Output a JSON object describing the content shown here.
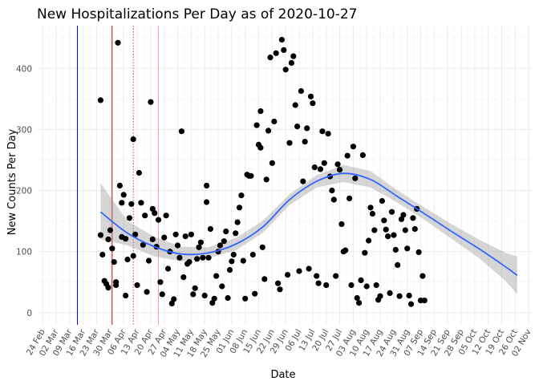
{
  "chart_data": {
    "type": "scatter",
    "title": "New Hospitalizations Per Day as of 2020-10-27",
    "xlabel": "Date",
    "ylabel": "New Counts Per Day",
    "xlim": [
      "2020-02-21",
      "2020-11-04"
    ],
    "ylim": [
      -20,
      470
    ],
    "y_ticks": [
      0,
      100,
      200,
      300,
      400
    ],
    "x_ticks": [
      {
        "date": "2020-02-24",
        "label": "24 Feb"
      },
      {
        "date": "2020-03-02",
        "label": "02 Mar"
      },
      {
        "date": "2020-03-09",
        "label": "09 Mar"
      },
      {
        "date": "2020-03-16",
        "label": "16 Mar"
      },
      {
        "date": "2020-03-23",
        "label": "23 Mar"
      },
      {
        "date": "2020-03-30",
        "label": "30 Mar"
      },
      {
        "date": "2020-04-06",
        "label": "06 Apr"
      },
      {
        "date": "2020-04-13",
        "label": "13 Apr"
      },
      {
        "date": "2020-04-20",
        "label": "20 Apr"
      },
      {
        "date": "2020-04-27",
        "label": "27 Apr"
      },
      {
        "date": "2020-05-04",
        "label": "04 May"
      },
      {
        "date": "2020-05-11",
        "label": "11 May"
      },
      {
        "date": "2020-05-18",
        "label": "18 May"
      },
      {
        "date": "2020-05-25",
        "label": "25 May"
      },
      {
        "date": "2020-06-01",
        "label": "01 Jun"
      },
      {
        "date": "2020-06-08",
        "label": "08 Jun"
      },
      {
        "date": "2020-06-15",
        "label": "15 Jun"
      },
      {
        "date": "2020-06-22",
        "label": "22 Jun"
      },
      {
        "date": "2020-06-29",
        "label": "29 Jun"
      },
      {
        "date": "2020-07-06",
        "label": "06 Jul"
      },
      {
        "date": "2020-07-13",
        "label": "13 Jul"
      },
      {
        "date": "2020-07-20",
        "label": "20 Jul"
      },
      {
        "date": "2020-07-27",
        "label": "27 Jul"
      },
      {
        "date": "2020-08-03",
        "label": "03 Aug"
      },
      {
        "date": "2020-08-10",
        "label": "10 Aug"
      },
      {
        "date": "2020-08-17",
        "label": "17 Aug"
      },
      {
        "date": "2020-08-24",
        "label": "24 Aug"
      },
      {
        "date": "2020-08-31",
        "label": "31 Aug"
      },
      {
        "date": "2020-09-07",
        "label": "07 Sep"
      },
      {
        "date": "2020-09-14",
        "label": "14 Sep"
      },
      {
        "date": "2020-09-21",
        "label": "21 Sep"
      },
      {
        "date": "2020-09-28",
        "label": "28 Sep"
      },
      {
        "date": "2020-10-05",
        "label": "05 Oct"
      },
      {
        "date": "2020-10-12",
        "label": "12 Oct"
      },
      {
        "date": "2020-10-19",
        "label": "19 Oct"
      },
      {
        "date": "2020-10-26",
        "label": "26 Oct"
      },
      {
        "date": "2020-11-02",
        "label": "02 Nov"
      }
    ],
    "grid": true,
    "point_color": "#000000",
    "reference_lines": [
      {
        "date": "2020-03-13",
        "color": "#0000ff",
        "style": "solid"
      },
      {
        "date": "2020-03-31",
        "color": "#cc0000",
        "style": "solid"
      },
      {
        "date": "2020-04-11",
        "color": "#cc3333",
        "style": "dotted"
      },
      {
        "date": "2020-04-24",
        "color": "#f4a0a0",
        "style": "solid"
      }
    ],
    "smooth": {
      "color": "#3366ff",
      "band_color": "#999999",
      "x": [
        "2020-03-25",
        "2020-04-08",
        "2020-04-22",
        "2020-05-06",
        "2020-05-20",
        "2020-06-03",
        "2020-06-17",
        "2020-07-01",
        "2020-07-15",
        "2020-07-29",
        "2020-08-12",
        "2020-08-26",
        "2020-09-09",
        "2020-09-23",
        "2020-10-07",
        "2020-10-21",
        "2020-10-27"
      ],
      "y": [
        165,
        130,
        108,
        96,
        98,
        112,
        140,
        185,
        215,
        228,
        218,
        190,
        162,
        133,
        105,
        75,
        61
      ],
      "lower": [
        120,
        110,
        92,
        84,
        89,
        102,
        130,
        176,
        205,
        214,
        205,
        180,
        152,
        121,
        90,
        52,
        30
      ],
      "upper": [
        212,
        150,
        124,
        108,
        107,
        122,
        150,
        194,
        225,
        242,
        232,
        200,
        172,
        145,
        120,
        98,
        92
      ]
    },
    "points": [
      {
        "x": "2020-03-25",
        "y": 348
      },
      {
        "x": "2020-03-25",
        "y": 127
      },
      {
        "x": "2020-03-26",
        "y": 95
      },
      {
        "x": "2020-03-27",
        "y": 52
      },
      {
        "x": "2020-03-28",
        "y": 47
      },
      {
        "x": "2020-03-29",
        "y": 41
      },
      {
        "x": "2020-03-29",
        "y": 120
      },
      {
        "x": "2020-03-30",
        "y": 135
      },
      {
        "x": "2020-03-31",
        "y": 105
      },
      {
        "x": "2020-04-01",
        "y": 83
      },
      {
        "x": "2020-04-02",
        "y": 45
      },
      {
        "x": "2020-04-02",
        "y": 50
      },
      {
        "x": "2020-04-03",
        "y": 442
      },
      {
        "x": "2020-04-04",
        "y": 208
      },
      {
        "x": "2020-04-05",
        "y": 180
      },
      {
        "x": "2020-04-05",
        "y": 124
      },
      {
        "x": "2020-04-06",
        "y": 193
      },
      {
        "x": "2020-04-07",
        "y": 28
      },
      {
        "x": "2020-04-07",
        "y": 121
      },
      {
        "x": "2020-04-08",
        "y": 87
      },
      {
        "x": "2020-04-09",
        "y": 155
      },
      {
        "x": "2020-04-10",
        "y": 178
      },
      {
        "x": "2020-04-11",
        "y": 284
      },
      {
        "x": "2020-04-11",
        "y": 93
      },
      {
        "x": "2020-04-12",
        "y": 128
      },
      {
        "x": "2020-04-13",
        "y": 45
      },
      {
        "x": "2020-04-14",
        "y": 229
      },
      {
        "x": "2020-04-15",
        "y": 180
      },
      {
        "x": "2020-04-16",
        "y": 111
      },
      {
        "x": "2020-04-17",
        "y": 159
      },
      {
        "x": "2020-04-18",
        "y": 34
      },
      {
        "x": "2020-04-19",
        "y": 85
      },
      {
        "x": "2020-04-20",
        "y": 345
      },
      {
        "x": "2020-04-21",
        "y": 170
      },
      {
        "x": "2020-04-21",
        "y": 120
      },
      {
        "x": "2020-04-22",
        "y": 163
      },
      {
        "x": "2020-04-23",
        "y": 108
      },
      {
        "x": "2020-04-24",
        "y": 152
      },
      {
        "x": "2020-04-25",
        "y": 50
      },
      {
        "x": "2020-04-26",
        "y": 30
      },
      {
        "x": "2020-04-27",
        "y": 123
      },
      {
        "x": "2020-04-28",
        "y": 159
      },
      {
        "x": "2020-04-29",
        "y": 72
      },
      {
        "x": "2020-04-30",
        "y": 100
      },
      {
        "x": "2020-05-01",
        "y": 15
      },
      {
        "x": "2020-05-02",
        "y": 22
      },
      {
        "x": "2020-05-03",
        "y": 128
      },
      {
        "x": "2020-05-04",
        "y": 110
      },
      {
        "x": "2020-05-05",
        "y": 90
      },
      {
        "x": "2020-05-06",
        "y": 297
      },
      {
        "x": "2020-05-07",
        "y": 58
      },
      {
        "x": "2020-05-08",
        "y": 125
      },
      {
        "x": "2020-05-09",
        "y": 80
      },
      {
        "x": "2020-05-10",
        "y": 83
      },
      {
        "x": "2020-05-11",
        "y": 128
      },
      {
        "x": "2020-05-12",
        "y": 30
      },
      {
        "x": "2020-05-13",
        "y": 40
      },
      {
        "x": "2020-05-14",
        "y": 88
      },
      {
        "x": "2020-05-15",
        "y": 107
      },
      {
        "x": "2020-05-16",
        "y": 115
      },
      {
        "x": "2020-05-17",
        "y": 90
      },
      {
        "x": "2020-05-18",
        "y": 28
      },
      {
        "x": "2020-05-19",
        "y": 208
      },
      {
        "x": "2020-05-19",
        "y": 181
      },
      {
        "x": "2020-05-20",
        "y": 90
      },
      {
        "x": "2020-05-21",
        "y": 137
      },
      {
        "x": "2020-05-22",
        "y": 16
      },
      {
        "x": "2020-05-23",
        "y": 23
      },
      {
        "x": "2020-05-24",
        "y": 60
      },
      {
        "x": "2020-05-25",
        "y": 100
      },
      {
        "x": "2020-05-26",
        "y": 110
      },
      {
        "x": "2020-05-27",
        "y": 43
      },
      {
        "x": "2020-05-28",
        "y": 117
      },
      {
        "x": "2020-05-29",
        "y": 133
      },
      {
        "x": "2020-05-30",
        "y": 24
      },
      {
        "x": "2020-05-31",
        "y": 70
      },
      {
        "x": "2020-06-01",
        "y": 84
      },
      {
        "x": "2020-06-02",
        "y": 95
      },
      {
        "x": "2020-06-03",
        "y": 130
      },
      {
        "x": "2020-06-04",
        "y": 148
      },
      {
        "x": "2020-06-05",
        "y": 172
      },
      {
        "x": "2020-06-06",
        "y": 192
      },
      {
        "x": "2020-06-07",
        "y": 85
      },
      {
        "x": "2020-06-08",
        "y": 23
      },
      {
        "x": "2020-06-09",
        "y": 226
      },
      {
        "x": "2020-06-10",
        "y": 224
      },
      {
        "x": "2020-06-11",
        "y": 224
      },
      {
        "x": "2020-06-12",
        "y": 95
      },
      {
        "x": "2020-06-13",
        "y": 31
      },
      {
        "x": "2020-06-14",
        "y": 307
      },
      {
        "x": "2020-06-15",
        "y": 275
      },
      {
        "x": "2020-06-16",
        "y": 330
      },
      {
        "x": "2020-06-16",
        "y": 270
      },
      {
        "x": "2020-06-17",
        "y": 107
      },
      {
        "x": "2020-06-18",
        "y": 55
      },
      {
        "x": "2020-06-19",
        "y": 218
      },
      {
        "x": "2020-06-20",
        "y": 298
      },
      {
        "x": "2020-06-21",
        "y": 418
      },
      {
        "x": "2020-06-22",
        "y": 245
      },
      {
        "x": "2020-06-23",
        "y": 313
      },
      {
        "x": "2020-06-24",
        "y": 425
      },
      {
        "x": "2020-06-25",
        "y": 48
      },
      {
        "x": "2020-06-26",
        "y": 38
      },
      {
        "x": "2020-06-27",
        "y": 447
      },
      {
        "x": "2020-06-28",
        "y": 430
      },
      {
        "x": "2020-06-29",
        "y": 398
      },
      {
        "x": "2020-06-30",
        "y": 62
      },
      {
        "x": "2020-07-01",
        "y": 278
      },
      {
        "x": "2020-07-02",
        "y": 409
      },
      {
        "x": "2020-07-03",
        "y": 420
      },
      {
        "x": "2020-07-04",
        "y": 340
      },
      {
        "x": "2020-07-05",
        "y": 305
      },
      {
        "x": "2020-07-06",
        "y": 68
      },
      {
        "x": "2020-07-07",
        "y": 363
      },
      {
        "x": "2020-07-08",
        "y": 215
      },
      {
        "x": "2020-07-09",
        "y": 280
      },
      {
        "x": "2020-07-10",
        "y": 302
      },
      {
        "x": "2020-07-11",
        "y": 72
      },
      {
        "x": "2020-07-12",
        "y": 354
      },
      {
        "x": "2020-07-13",
        "y": 343
      },
      {
        "x": "2020-07-14",
        "y": 238
      },
      {
        "x": "2020-07-15",
        "y": 60
      },
      {
        "x": "2020-07-16",
        "y": 48
      },
      {
        "x": "2020-07-17",
        "y": 235
      },
      {
        "x": "2020-07-18",
        "y": 297
      },
      {
        "x": "2020-07-19",
        "y": 245
      },
      {
        "x": "2020-07-20",
        "y": 45
      },
      {
        "x": "2020-07-21",
        "y": 293
      },
      {
        "x": "2020-07-22",
        "y": 223
      },
      {
        "x": "2020-07-23",
        "y": 200
      },
      {
        "x": "2020-07-24",
        "y": 185
      },
      {
        "x": "2020-07-25",
        "y": 60
      },
      {
        "x": "2020-07-26",
        "y": 243
      },
      {
        "x": "2020-07-27",
        "y": 234
      },
      {
        "x": "2020-07-28",
        "y": 145
      },
      {
        "x": "2020-07-29",
        "y": 100
      },
      {
        "x": "2020-07-30",
        "y": 102
      },
      {
        "x": "2020-07-31",
        "y": 257
      },
      {
        "x": "2020-08-01",
        "y": 187
      },
      {
        "x": "2020-08-02",
        "y": 45
      },
      {
        "x": "2020-08-03",
        "y": 272
      },
      {
        "x": "2020-08-04",
        "y": 220
      },
      {
        "x": "2020-08-05",
        "y": 24
      },
      {
        "x": "2020-08-06",
        "y": 16
      },
      {
        "x": "2020-08-07",
        "y": 53
      },
      {
        "x": "2020-08-08",
        "y": 258
      },
      {
        "x": "2020-08-09",
        "y": 98
      },
      {
        "x": "2020-08-10",
        "y": 43
      },
      {
        "x": "2020-08-11",
        "y": 118
      },
      {
        "x": "2020-08-12",
        "y": 172
      },
      {
        "x": "2020-08-13",
        "y": 162
      },
      {
        "x": "2020-08-14",
        "y": 135
      },
      {
        "x": "2020-08-15",
        "y": 45
      },
      {
        "x": "2020-08-16",
        "y": 21
      },
      {
        "x": "2020-08-17",
        "y": 27
      },
      {
        "x": "2020-08-18",
        "y": 183
      },
      {
        "x": "2020-08-19",
        "y": 151
      },
      {
        "x": "2020-08-20",
        "y": 136
      },
      {
        "x": "2020-08-21",
        "y": 125
      },
      {
        "x": "2020-08-22",
        "y": 32
      },
      {
        "x": "2020-08-23",
        "y": 165
      },
      {
        "x": "2020-08-24",
        "y": 127
      },
      {
        "x": "2020-08-25",
        "y": 103
      },
      {
        "x": "2020-08-26",
        "y": 78
      },
      {
        "x": "2020-08-27",
        "y": 27
      },
      {
        "x": "2020-08-28",
        "y": 153
      },
      {
        "x": "2020-08-29",
        "y": 160
      },
      {
        "x": "2020-08-30",
        "y": 135
      },
      {
        "x": "2020-08-31",
        "y": 105
      },
      {
        "x": "2020-09-01",
        "y": 28
      },
      {
        "x": "2020-09-02",
        "y": 14
      },
      {
        "x": "2020-09-03",
        "y": 155
      },
      {
        "x": "2020-09-04",
        "y": 137
      },
      {
        "x": "2020-09-05",
        "y": 170
      },
      {
        "x": "2020-09-06",
        "y": 99
      },
      {
        "x": "2020-09-07",
        "y": 20
      },
      {
        "x": "2020-09-08",
        "y": 60
      },
      {
        "x": "2020-09-09",
        "y": 20
      }
    ]
  }
}
